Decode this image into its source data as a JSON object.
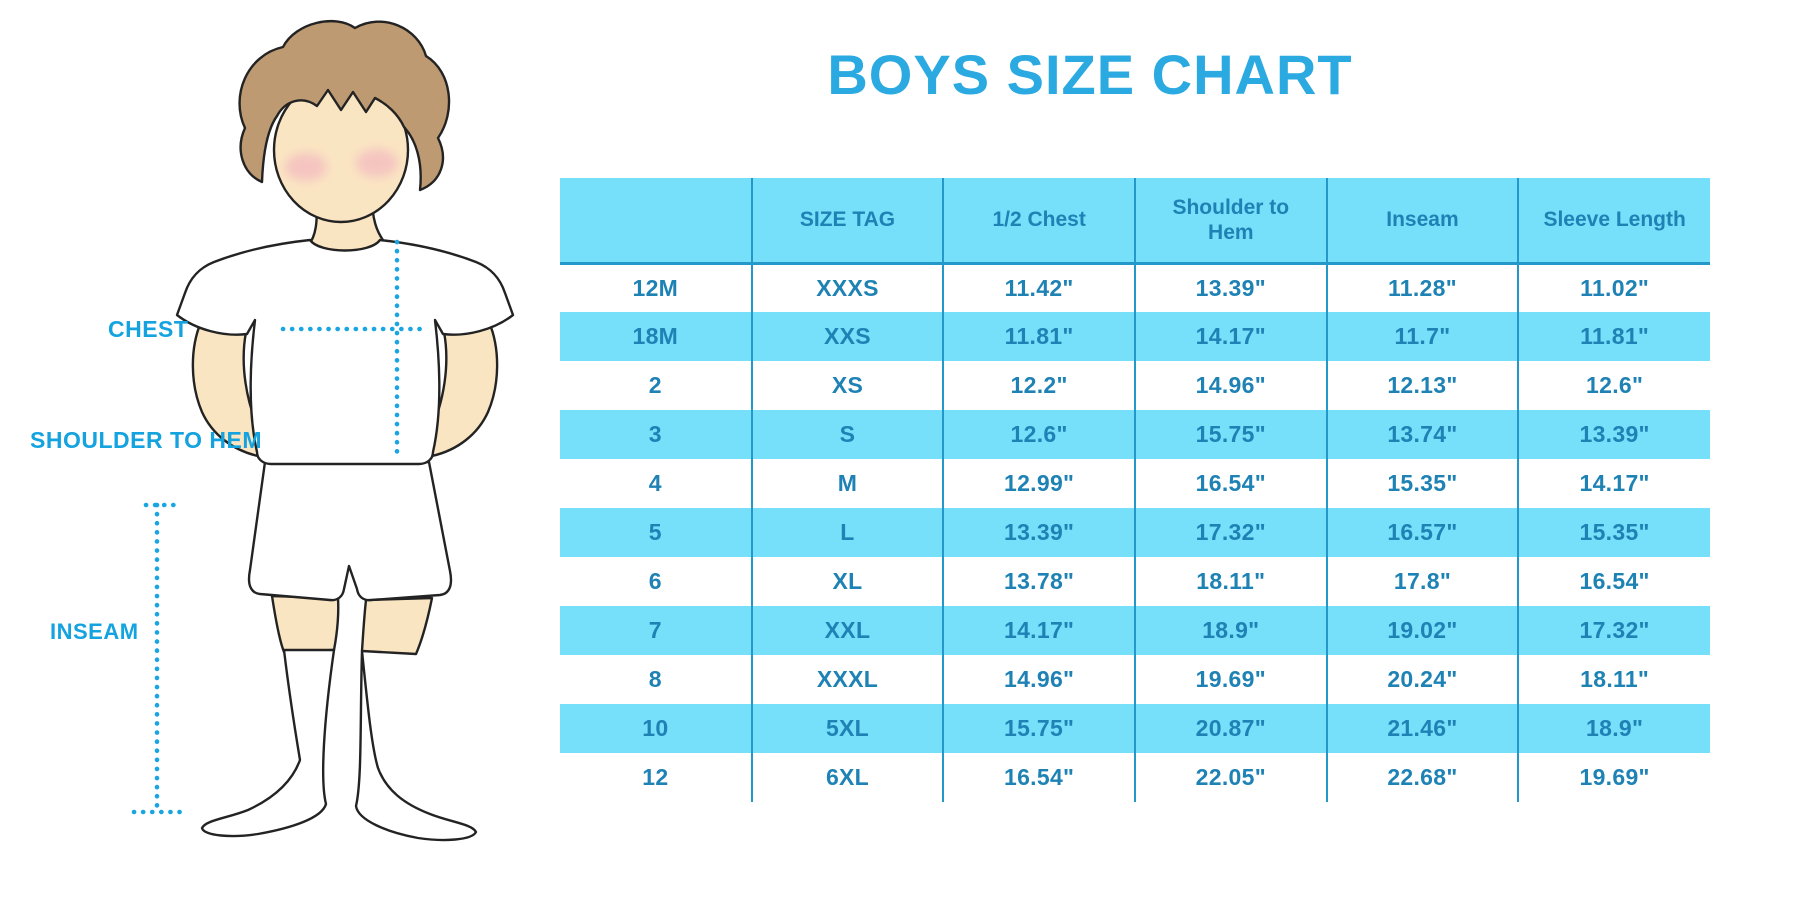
{
  "title": "BOYS SIZE CHART",
  "diagram": {
    "chest_label": "CHEST",
    "shoulder_to_hem_label": "SHOULDER TO HEM",
    "inseam_label": "INSEAM"
  },
  "chart_data": {
    "type": "table",
    "title": "BOYS SIZE CHART",
    "units": "inches",
    "columns": [
      "",
      "SIZE TAG",
      "1/2 Chest",
      "Shoulder to Hem",
      "Inseam",
      "Sleeve Length"
    ],
    "rows": [
      [
        "12M",
        "XXXS",
        "11.42\"",
        "13.39\"",
        "11.28\"",
        "11.02\""
      ],
      [
        "18M",
        "XXS",
        "11.81\"",
        "14.17\"",
        "11.7\"",
        "11.81\""
      ],
      [
        "2",
        "XS",
        "12.2\"",
        "14.96\"",
        "12.13\"",
        "12.6\""
      ],
      [
        "3",
        "S",
        "12.6\"",
        "15.75\"",
        "13.74\"",
        "13.39\""
      ],
      [
        "4",
        "M",
        "12.99\"",
        "16.54\"",
        "15.35\"",
        "14.17\""
      ],
      [
        "5",
        "L",
        "13.39\"",
        "17.32\"",
        "16.57\"",
        "15.35\""
      ],
      [
        "6",
        "XL",
        "13.78\"",
        "18.11\"",
        "17.8\"",
        "16.54\""
      ],
      [
        "7",
        "XXL",
        "14.17\"",
        "18.9\"",
        "19.02\"",
        "17.32\""
      ],
      [
        "8",
        "XXXL",
        "14.96\"",
        "19.69\"",
        "20.24\"",
        "18.11\""
      ],
      [
        "10",
        "5XL",
        "15.75\"",
        "20.87\"",
        "21.46\"",
        "18.9\""
      ],
      [
        "12",
        "6XL",
        "16.54\"",
        "22.05\"",
        "22.68\"",
        "19.69\""
      ]
    ]
  },
  "colors": {
    "title_blue": "#2BA9E1",
    "table_cyan": "#76DFFA",
    "table_text_blue": "#1E82B5",
    "table_line_blue": "#2598CB",
    "label_blue": "#14A3DF",
    "dot_blue": "#18A5E0",
    "skin": "#FAE5C2",
    "hair_brown": "#BD9A71",
    "blush_pink": "#F2AFC0"
  }
}
